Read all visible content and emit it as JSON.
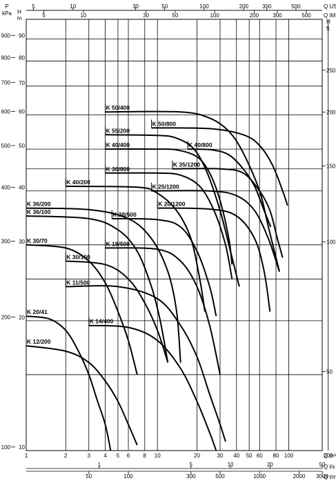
{
  "chart_data": {
    "type": "line",
    "title": "",
    "x_scale": "log",
    "y_scale": "log",
    "xlim": [
      1,
      180
    ],
    "ylim": [
      10,
      100
    ],
    "grid": true,
    "axes": {
      "x_bottom": {
        "units": "Q m³/h",
        "ticks": [
          1,
          2,
          3,
          4,
          5,
          6,
          8,
          10,
          20,
          30,
          40,
          50,
          60,
          80,
          100,
          200
        ]
      },
      "x_ls": {
        "units": "Q l/s",
        "ticks": [
          1,
          5,
          10,
          20,
          50
        ]
      },
      "x_lmin": {
        "units": "Q l/min",
        "ticks": [
          50,
          100,
          300,
          500,
          1000,
          2000,
          3000
        ]
      },
      "x_us": {
        "units": "Q US gpm",
        "ticks": [
          5,
          10,
          30,
          50,
          100,
          200,
          300,
          500
        ]
      },
      "x_imp": {
        "units": "Q IMP gpm",
        "ticks": [
          5,
          10,
          30,
          50,
          100,
          200,
          300,
          500
        ]
      },
      "y_kpa": {
        "title": "P",
        "units": "kPa",
        "ticks": [
          900,
          800,
          700,
          600,
          500,
          400,
          300,
          200,
          100
        ]
      },
      "y_m": {
        "title": "H",
        "units": "m",
        "ticks": [
          90,
          80,
          70,
          60,
          50,
          40,
          30,
          20,
          10
        ]
      },
      "y_ft": {
        "title": "H",
        "units": "ft",
        "ticks": [
          250,
          200,
          150,
          100,
          50
        ]
      }
    },
    "series": [
      {
        "name": "K 50/400",
        "label_at": [
          4,
          61
        ],
        "points": [
          [
            4,
            61
          ],
          [
            15,
            61
          ],
          [
            25,
            59
          ],
          [
            35,
            55
          ],
          [
            45,
            49
          ],
          [
            60,
            40
          ],
          [
            70,
            33
          ],
          [
            85,
            26
          ]
        ]
      },
      {
        "name": "K 55/200",
        "label_at": [
          4,
          54
        ],
        "points": [
          [
            4,
            54
          ],
          [
            10,
            53.8
          ],
          [
            14,
            53
          ],
          [
            19,
            50
          ],
          [
            24,
            44
          ],
          [
            30,
            36
          ],
          [
            36,
            29
          ],
          [
            42,
            24
          ]
        ]
      },
      {
        "name": "K 50/800",
        "label_at": [
          9,
          56
        ],
        "points": [
          [
            9,
            56
          ],
          [
            25,
            55.8
          ],
          [
            45,
            54
          ],
          [
            60,
            51
          ],
          [
            75,
            46
          ],
          [
            90,
            40
          ],
          [
            98,
            37
          ]
        ]
      },
      {
        "name": "K 40/400",
        "label_at": [
          4,
          50
        ],
        "points": [
          [
            4,
            50
          ],
          [
            10,
            50
          ],
          [
            14,
            49.8
          ],
          [
            20,
            48
          ],
          [
            25,
            44
          ],
          [
            30,
            38
          ],
          [
            35,
            31
          ],
          [
            37,
            27
          ]
        ]
      },
      {
        "name": "K 40/800",
        "label_at": [
          17,
          50
        ],
        "points": [
          [
            17,
            50
          ],
          [
            26,
            49.8
          ],
          [
            35,
            48.5
          ],
          [
            45,
            45
          ],
          [
            55,
            41
          ],
          [
            65,
            36
          ],
          [
            73,
            33
          ]
        ]
      },
      {
        "name": "K 30/800",
        "label_at": [
          4,
          44
        ],
        "points": [
          [
            4,
            44
          ],
          [
            10,
            44
          ],
          [
            15,
            43.5
          ],
          [
            21,
            41
          ],
          [
            27,
            36
          ],
          [
            33,
            30
          ],
          [
            37,
            25
          ]
        ]
      },
      {
        "name": "K 35/1200",
        "label_at": [
          13,
          45
        ],
        "points": [
          [
            13,
            45
          ],
          [
            30,
            45
          ],
          [
            45,
            44
          ],
          [
            60,
            40
          ],
          [
            72,
            36
          ],
          [
            82,
            31
          ],
          [
            90,
            28
          ]
        ]
      },
      {
        "name": "K 40/200",
        "label_at": [
          2,
          41
        ],
        "points": [
          [
            2,
            41
          ],
          [
            7,
            40.8
          ],
          [
            10,
            39.5
          ],
          [
            14,
            36
          ],
          [
            18,
            31
          ],
          [
            21,
            25
          ],
          [
            23,
            21
          ]
        ]
      },
      {
        "name": "K 25/1200",
        "label_at": [
          9,
          40
        ],
        "points": [
          [
            9,
            40
          ],
          [
            25,
            40
          ],
          [
            40,
            39
          ],
          [
            55,
            36
          ],
          [
            70,
            31
          ],
          [
            85,
            26
          ]
        ]
      },
      {
        "name": "K 36/200",
        "label_at": [
          1,
          36.5
        ],
        "points": [
          [
            1,
            36.5
          ],
          [
            3,
            36.2
          ],
          [
            6,
            34.5
          ],
          [
            9,
            31
          ],
          [
            12,
            26
          ],
          [
            14,
            21
          ],
          [
            15,
            16
          ]
        ]
      },
      {
        "name": "K 28/500",
        "label_at": [
          4.5,
          34.5
        ],
        "points": [
          [
            4.5,
            34.5
          ],
          [
            10,
            34.3
          ],
          [
            15,
            33
          ],
          [
            20,
            29
          ],
          [
            25,
            24
          ],
          [
            28,
            20.5
          ]
        ]
      },
      {
        "name": "K 20/1200",
        "label_at": [
          10,
          36.5
        ],
        "points": [
          [
            10,
            36.5
          ],
          [
            25,
            36.3
          ],
          [
            40,
            35
          ],
          [
            55,
            31
          ],
          [
            65,
            26
          ],
          [
            72,
            21
          ]
        ]
      },
      {
        "name": "K 36/100",
        "label_at": [
          1,
          35
        ],
        "points": [
          [
            1,
            35
          ],
          [
            3,
            34.5
          ],
          [
            5,
            32.5
          ],
          [
            7,
            29
          ],
          [
            9,
            24
          ],
          [
            10.5,
            20
          ],
          [
            12,
            16
          ]
        ]
      },
      {
        "name": "K 30/70",
        "label_at": [
          1,
          30
        ],
        "points": [
          [
            1,
            30
          ],
          [
            2,
            29.5
          ],
          [
            3,
            27.5
          ],
          [
            4,
            24.5
          ],
          [
            5,
            21
          ],
          [
            6,
            18
          ],
          [
            7,
            15
          ]
        ]
      },
      {
        "name": "K 30/100",
        "label_at": [
          2,
          27.5
        ],
        "points": [
          [
            2,
            27.5
          ],
          [
            4,
            27
          ],
          [
            6,
            25
          ],
          [
            8,
            22
          ],
          [
            10,
            19
          ],
          [
            12,
            16
          ]
        ]
      },
      {
        "name": "K 18/500",
        "label_at": [
          4,
          29.5
        ],
        "points": [
          [
            4,
            29.5
          ],
          [
            10,
            29.3
          ],
          [
            15,
            27.5
          ],
          [
            20,
            24
          ],
          [
            25,
            19.5
          ],
          [
            30,
            15
          ]
        ]
      },
      {
        "name": "K 11/500",
        "label_at": [
          2,
          24
        ],
        "points": [
          [
            2,
            24
          ],
          [
            5,
            24
          ],
          [
            10,
            22.5
          ],
          [
            15,
            19.5
          ],
          [
            20,
            16.5
          ],
          [
            25,
            13.5
          ],
          [
            30,
            11.5
          ],
          [
            33,
            10.5
          ]
        ]
      },
      {
        "name": "K 20/41",
        "label_at": [
          1,
          20.5
        ],
        "points": [
          [
            1,
            20.5
          ],
          [
            1.5,
            20.2
          ],
          [
            2,
            19
          ],
          [
            2.5,
            17
          ],
          [
            3,
            15
          ],
          [
            3.5,
            13
          ],
          [
            4,
            11.5
          ],
          [
            4.4,
            10
          ]
        ]
      },
      {
        "name": "K 14/400",
        "label_at": [
          3,
          19.5
        ],
        "points": [
          [
            3,
            19.5
          ],
          [
            6,
            19.3
          ],
          [
            10,
            18
          ],
          [
            15,
            15.5
          ],
          [
            20,
            13
          ],
          [
            25,
            11
          ],
          [
            28,
            10
          ]
        ]
      },
      {
        "name": "K 12/200",
        "label_at": [
          1,
          17.5
        ],
        "points": [
          [
            1,
            17.5
          ],
          [
            2,
            17
          ],
          [
            3,
            16
          ],
          [
            4,
            14.5
          ],
          [
            5,
            13
          ],
          [
            6,
            11.5
          ],
          [
            7,
            10.3
          ]
        ]
      }
    ]
  }
}
